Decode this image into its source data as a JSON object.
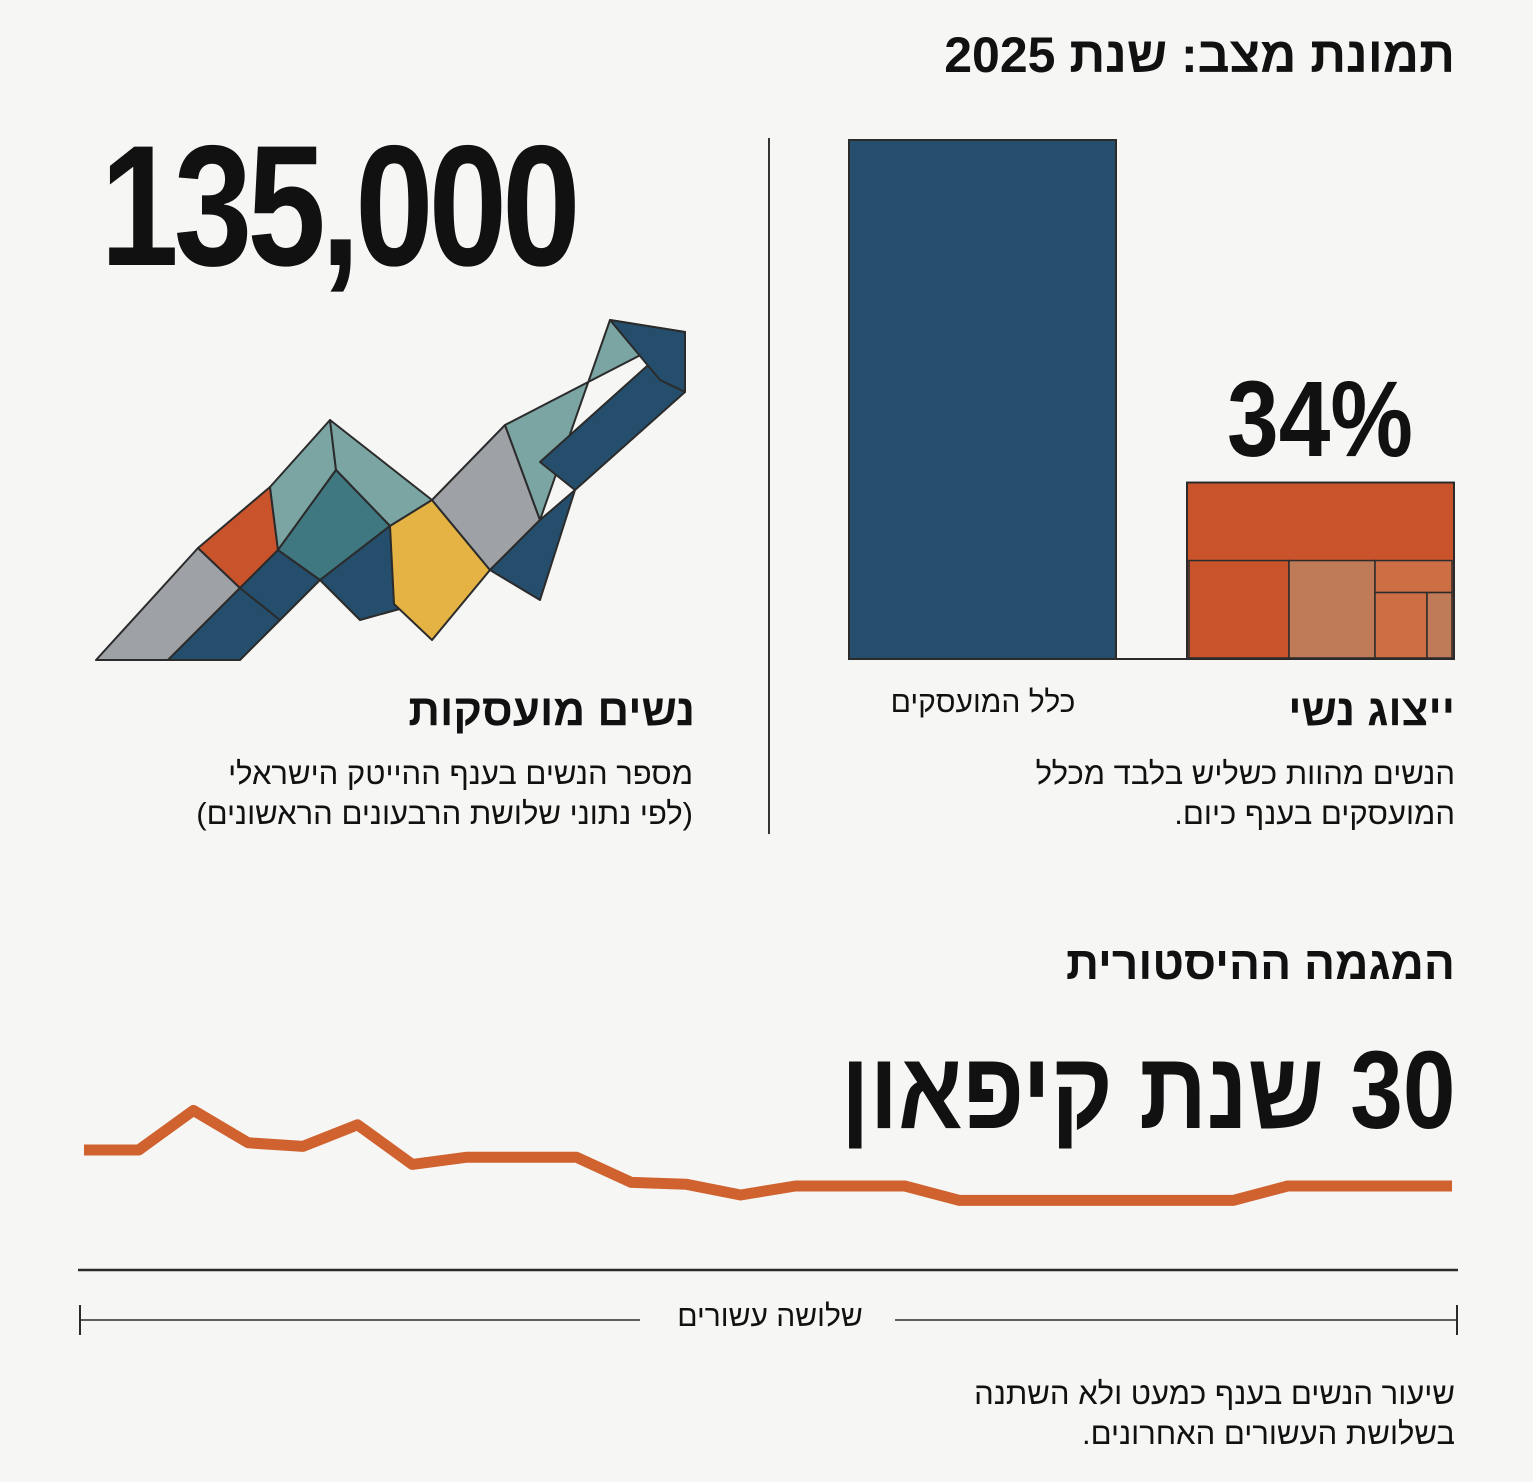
{
  "header": {
    "title": "תמונת מצב: שנת 2025"
  },
  "left_panel": {
    "big_number": "135,000",
    "heading": "נשים מועסקות",
    "sub_line1": "מספר הנשים בענף ההייטק הישראלי",
    "sub_line2": "(לפי נתוני שלושת הרבעונים הראשונים)"
  },
  "right_panel": {
    "heading": "ייצוג נשי",
    "sub_line1": "הנשים מהוות כשליש בלבד מכלל",
    "sub_line2": "המועסקים בענף כיום."
  },
  "bottom_section": {
    "title": "המגמה ההיסטורית",
    "big_text": "30 שנת קיפאון",
    "axis_label": "שלושה עשורים",
    "footer_line1": "שיעור הנשים בענף כמעט ולא השתנה",
    "footer_line2": "בשלושת העשורים האחרונים."
  },
  "colors": {
    "navy": "#244e6b",
    "orange": "#c9542c",
    "orange_light": "#bf7a58",
    "orange_mid": "#cd6e45",
    "teal": "#7aa5a3",
    "teal_dark": "#3f7880",
    "gray": "#9ea2a6",
    "yellow": "#e5b344",
    "line": "#d0622f"
  },
  "chart_data": [
    {
      "type": "bar",
      "categories": [
        "כלל המועסקים",
        "ייצוג נשי"
      ],
      "values": [
        100,
        34
      ],
      "value_labels": [
        "",
        "34%"
      ],
      "ylim": [
        0,
        100
      ]
    },
    {
      "type": "line",
      "xlabel": "שלושה עשורים",
      "y": [
        31,
        31,
        33.2,
        31.4,
        31.2,
        32.4,
        30.2,
        30.6,
        30.6,
        30.6,
        29.2,
        29.1,
        28.5,
        29,
        29,
        29,
        28.2,
        28.2,
        28.2,
        28.2,
        28.2,
        28.2,
        29,
        29,
        29,
        29
      ],
      "ylim": [
        0,
        100
      ]
    }
  ]
}
